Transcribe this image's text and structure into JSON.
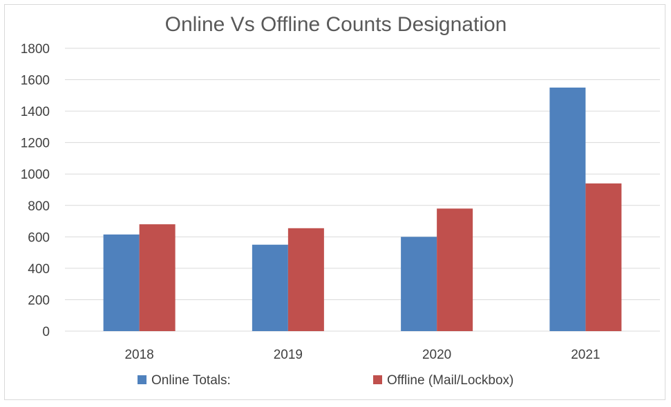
{
  "chart_data": {
    "type": "bar",
    "title": "Online Vs Offline Counts Designation",
    "categories": [
      "2018",
      "2019",
      "2020",
      "2021"
    ],
    "series": [
      {
        "name": "Online Totals:",
        "color": "#4f81bd",
        "values": [
          615,
          550,
          600,
          1550
        ]
      },
      {
        "name": "Offline (Mail/Lockbox)",
        "color": "#c0504d",
        "values": [
          680,
          655,
          780,
          940
        ]
      }
    ],
    "ylim": [
      0,
      1800
    ],
    "yticks": [
      "0",
      "200",
      "400",
      "600",
      "800",
      "1000",
      "1200",
      "1400",
      "1600",
      "1800"
    ],
    "xlabel": "",
    "ylabel": "",
    "grid": true,
    "legend_position": "bottom"
  }
}
